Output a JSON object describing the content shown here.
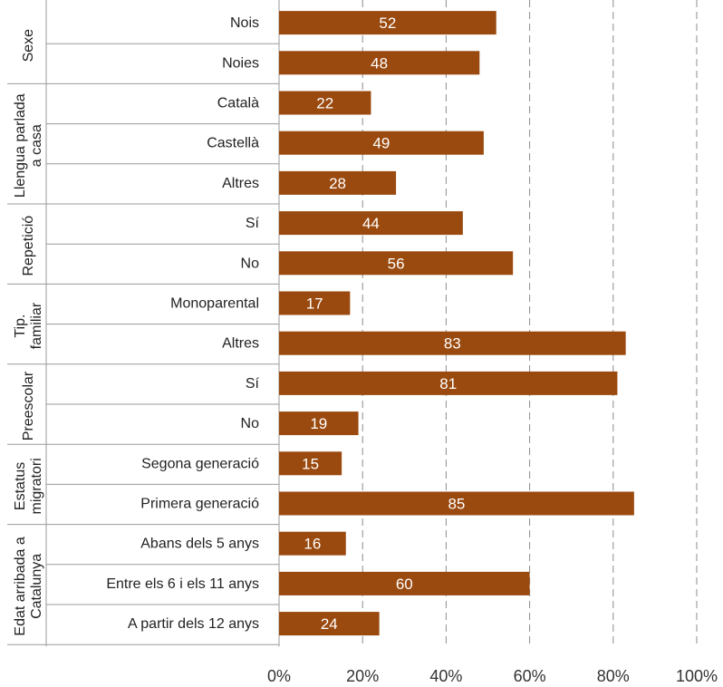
{
  "chart_data": {
    "type": "bar",
    "orientation": "horizontal",
    "value_format": "percent",
    "xlim": [
      0,
      100
    ],
    "ticks": [
      "0%",
      "20%",
      "40%",
      "60%",
      "80%",
      "100%"
    ],
    "tick_values": [
      0,
      20,
      40,
      60,
      80,
      100
    ],
    "grid": true,
    "bar_color": "#9a4a0f",
    "groups": [
      {
        "name": "Sexe",
        "name_lines": [
          "Sexe"
        ],
        "categories": [
          "Nois",
          "Noies"
        ],
        "values": [
          52,
          48
        ]
      },
      {
        "name": "Llengua parlada a casa",
        "name_lines": [
          "Llengua parlada",
          "a casa"
        ],
        "categories": [
          "Català",
          "Castellà",
          "Altres"
        ],
        "values": [
          22,
          49,
          28
        ]
      },
      {
        "name": "Repetició",
        "name_lines": [
          "Repetició"
        ],
        "categories": [
          "Sí",
          "No"
        ],
        "values": [
          44,
          56
        ]
      },
      {
        "name": "Tip. familiar",
        "name_lines": [
          "Tip.",
          "familiar"
        ],
        "categories": [
          "Monoparental",
          "Altres"
        ],
        "values": [
          17,
          83
        ]
      },
      {
        "name": "Preescolar",
        "name_lines": [
          "Preescolar"
        ],
        "categories": [
          "Sí",
          "No"
        ],
        "values": [
          81,
          19
        ]
      },
      {
        "name": "Estatus migratori",
        "name_lines": [
          "Estatus",
          "migratori"
        ],
        "categories": [
          "Segona generació",
          "Primera generació"
        ],
        "values": [
          15,
          85
        ]
      },
      {
        "name": "Edat arribada a Catalunya",
        "name_lines": [
          "Edat arribada a",
          "Catalunya"
        ],
        "categories": [
          "Abans dels 5 anys",
          "Entre els 6 i els 11 anys",
          "A partir dels 12 anys"
        ],
        "values": [
          16,
          60,
          24
        ]
      }
    ]
  }
}
